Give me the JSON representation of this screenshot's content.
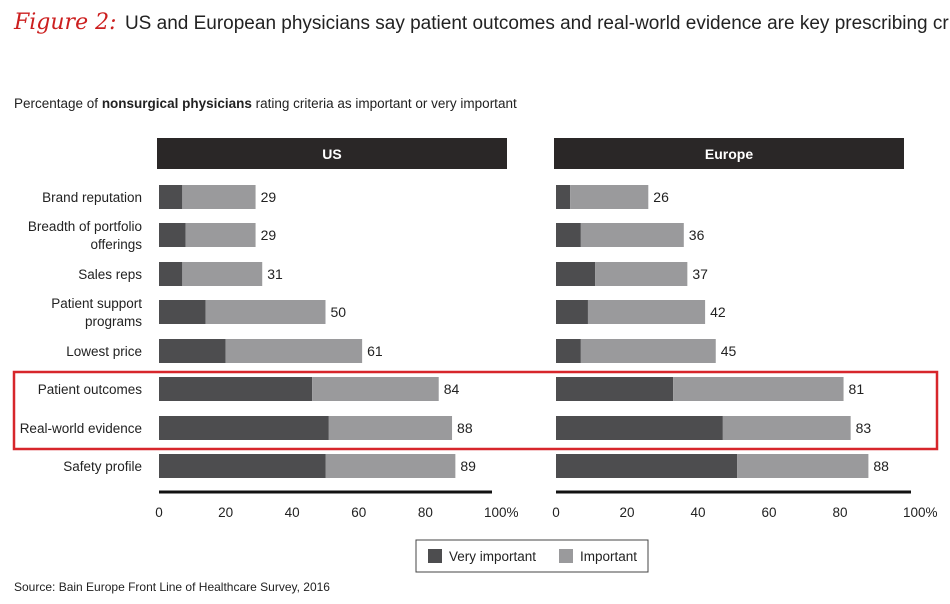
{
  "figure": {
    "label": "Figure 2:",
    "title": "US and European physicians say patient outcomes and real-world evidence are key prescribing criteria"
  },
  "subtitle": {
    "prefix": "Percentage of ",
    "bold": "nonsurgical physicians",
    "suffix": " rating criteria as important or very important"
  },
  "source": "Source: Bain Europe Front Line of Healthcare Survey, 2016",
  "colors": {
    "very_important": "#4d4d4f",
    "important": "#9a9a9c",
    "header_bg": "#2a2727",
    "highlight": "#d7262b"
  },
  "chart_data": [
    {
      "type": "bar",
      "orientation": "horizontal",
      "stacked": true,
      "title": "US",
      "categories": [
        "Brand reputation",
        "Breadth of portfolio offerings",
        "Sales reps",
        "Patient support programs",
        "Lowest price",
        "Patient outcomes",
        "Real-world evidence",
        "Safety profile"
      ],
      "category_lines": [
        [
          "Brand reputation"
        ],
        [
          "Breadth of portfolio",
          "offerings"
        ],
        [
          "Sales reps"
        ],
        [
          "Patient support",
          "programs"
        ],
        [
          "Lowest price"
        ],
        [
          "Patient outcomes"
        ],
        [
          "Real-world evidence"
        ],
        [
          "Safety profile"
        ]
      ],
      "series": [
        {
          "name": "Very important",
          "values": [
            7,
            8,
            7,
            14,
            20,
            46,
            51,
            50
          ]
        },
        {
          "name": "Important",
          "values": [
            22,
            21,
            24,
            36,
            41,
            38,
            37,
            39
          ]
        }
      ],
      "totals": [
        29,
        29,
        31,
        50,
        61,
        84,
        88,
        89
      ],
      "xlim": [
        0,
        100
      ],
      "xticks": [
        "0",
        "20",
        "40",
        "60",
        "80",
        "100%"
      ]
    },
    {
      "type": "bar",
      "orientation": "horizontal",
      "stacked": true,
      "title": "Europe",
      "categories": [
        "Brand reputation",
        "Breadth of portfolio offerings",
        "Sales reps",
        "Patient support programs",
        "Lowest price",
        "Patient outcomes",
        "Real-world evidence",
        "Safety profile"
      ],
      "series": [
        {
          "name": "Very important",
          "values": [
            4,
            7,
            11,
            9,
            7,
            33,
            47,
            51
          ]
        },
        {
          "name": "Important",
          "values": [
            22,
            29,
            26,
            33,
            38,
            48,
            36,
            37
          ]
        }
      ],
      "totals": [
        26,
        36,
        37,
        42,
        45,
        81,
        83,
        88
      ],
      "xlim": [
        0,
        100
      ],
      "xticks": [
        "0",
        "20",
        "40",
        "60",
        "80",
        "100%"
      ]
    }
  ],
  "legend": [
    "Very important",
    "Important"
  ],
  "highlighted_categories": [
    "Patient outcomes",
    "Real-world evidence"
  ]
}
